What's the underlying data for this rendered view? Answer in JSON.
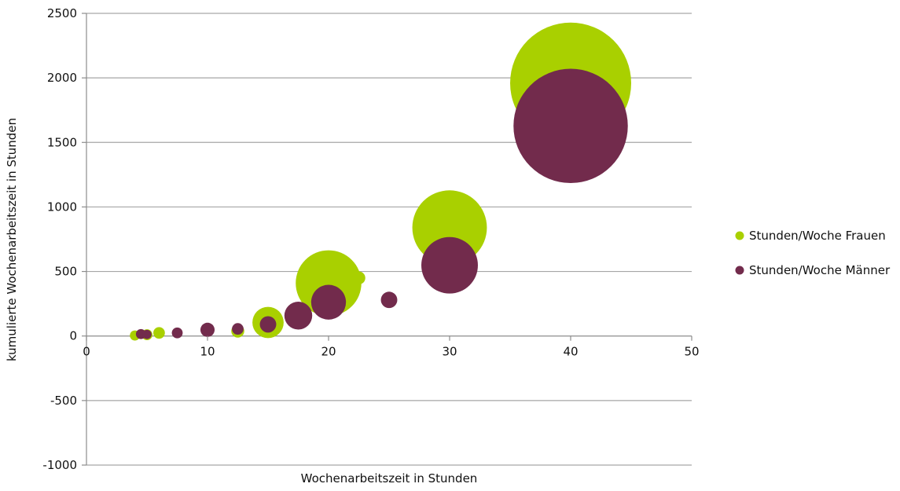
{
  "chart_data": {
    "type": "bubble",
    "title": "",
    "xlabel": "Wochenarbeitszeit in Stunden",
    "ylabel": "kumulierte Wochenarbeitszeit in Stunden",
    "xlim": [
      0,
      50
    ],
    "ylim": [
      -1000,
      2500
    ],
    "x_ticks": [
      0,
      10,
      20,
      30,
      40,
      50
    ],
    "y_ticks": [
      -1000,
      -500,
      0,
      500,
      1000,
      1500,
      2000,
      2500
    ],
    "grid": "horizontal",
    "legend_position": "right",
    "series": [
      {
        "name": "Stunden/Woche Frauen",
        "color": "#a9d000",
        "points": [
          {
            "x": 4,
            "y": 4,
            "size": 0.3
          },
          {
            "x": 5,
            "y": 10,
            "size": 0.35
          },
          {
            "x": 6,
            "y": 24,
            "size": 0.4
          },
          {
            "x": 12.5,
            "y": 38,
            "size": 0.5
          },
          {
            "x": 15,
            "y": 105,
            "size": 2.9
          },
          {
            "x": 20,
            "y": 410,
            "size": 12.8
          },
          {
            "x": 22.5,
            "y": 450,
            "size": 0.5
          },
          {
            "x": 30,
            "y": 840,
            "size": 16.5
          },
          {
            "x": 40,
            "y": 1960,
            "size": 43.5
          }
        ]
      },
      {
        "name": "Stunden/Woche Männer",
        "color": "#722b4c",
        "points": [
          {
            "x": 4.5,
            "y": 15,
            "size": 0.3
          },
          {
            "x": 5,
            "y": 12,
            "size": 0.25
          },
          {
            "x": 7.5,
            "y": 24,
            "size": 0.35
          },
          {
            "x": 10,
            "y": 48,
            "size": 0.6
          },
          {
            "x": 12.5,
            "y": 55,
            "size": 0.4
          },
          {
            "x": 15,
            "y": 90,
            "size": 0.8
          },
          {
            "x": 17.5,
            "y": 158,
            "size": 2.3
          },
          {
            "x": 20,
            "y": 262,
            "size": 3.6
          },
          {
            "x": 25,
            "y": 280,
            "size": 0.8
          },
          {
            "x": 30,
            "y": 548,
            "size": 9.5
          },
          {
            "x": 40,
            "y": 1628,
            "size": 38.8
          }
        ]
      }
    ]
  }
}
